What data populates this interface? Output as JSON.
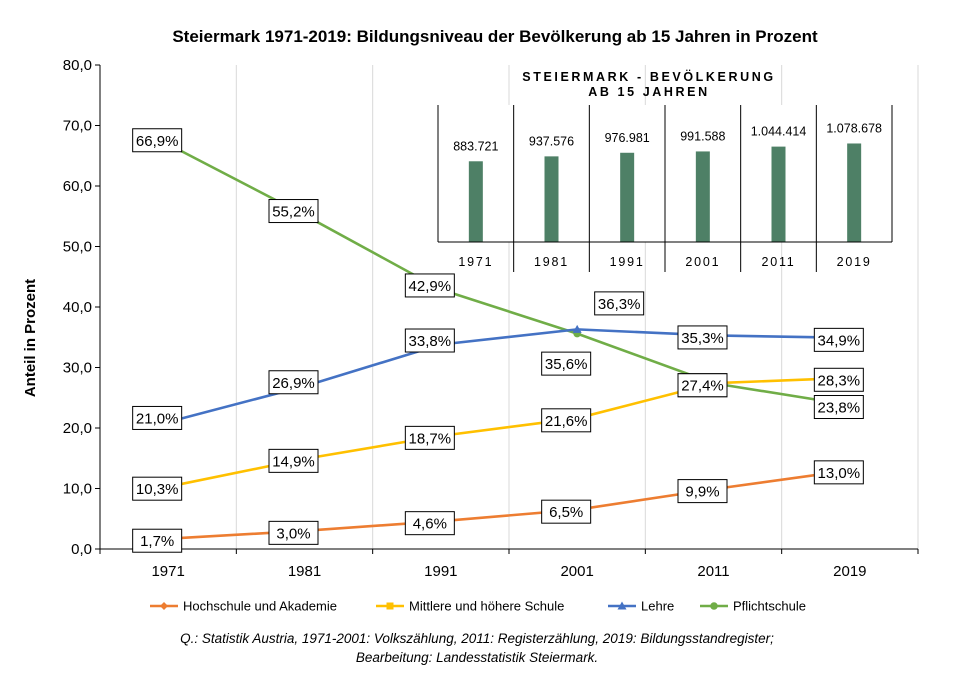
{
  "chart_data": [
    {
      "type": "line",
      "title": "Steiermark 1971-2019: Bildungsniveau der Bevölkerung ab 15 Jahren in Prozent",
      "xlabel": "",
      "ylabel": "Anteil in Prozent",
      "ylim": [
        0,
        80
      ],
      "yticks": [
        "0,0",
        "10,0",
        "20,0",
        "30,0",
        "40,0",
        "50,0",
        "60,0",
        "70,0",
        "80,0"
      ],
      "categories": [
        "1971",
        "1981",
        "1991",
        "2001",
        "2011",
        "2019"
      ],
      "grid": "vertical",
      "legend_position": "bottom",
      "series": [
        {
          "name": "Hochschule und Akademie",
          "color": "#ED7D31",
          "marker": "diamond",
          "values": [
            1.7,
            3.0,
            4.6,
            6.5,
            9.9,
            13.0
          ],
          "labels": [
            "1,7%",
            "3,0%",
            "4,6%",
            "6,5%",
            "9,9%",
            "13,0%"
          ]
        },
        {
          "name": "Mittlere und höhere Schule",
          "color": "#FFC000",
          "marker": "square",
          "values": [
            10.3,
            14.9,
            18.7,
            21.6,
            27.4,
            28.3
          ],
          "labels": [
            "10,3%",
            "14,9%",
            "18,7%",
            "21,6%",
            "27,4%",
            "28,3%"
          ]
        },
        {
          "name": "Lehre",
          "color": "#4472C4",
          "marker": "triangle",
          "values": [
            21.0,
            26.9,
            33.8,
            36.3,
            35.3,
            34.9
          ],
          "labels": [
            "21,0%",
            "26,9%",
            "33,8%",
            "36,3%",
            "35,3%",
            "34,9%"
          ]
        },
        {
          "name": "Pflichtschule",
          "color": "#70AD47",
          "marker": "circle",
          "values": [
            66.9,
            55.2,
            42.9,
            35.6,
            27.4,
            23.8
          ],
          "labels": [
            "66,9%",
            "55,2%",
            "42,9%",
            "35,6%",
            "27,4%",
            "23,8%"
          ]
        }
      ]
    },
    {
      "type": "bar",
      "title": "STEIERMARK - BEVÖLKERUNG AB 15 JAHREN",
      "title_lines": [
        "STEIERMARK - BEVÖLKERUNG",
        "AB 15 JAHREN"
      ],
      "categories": [
        "1971",
        "1981",
        "1991",
        "2001",
        "2011",
        "2019"
      ],
      "values": [
        883721,
        937576,
        976981,
        991588,
        1044414,
        1078678
      ],
      "labels": [
        "883.721",
        "937.576",
        "976.981",
        "991.588",
        "1.044.414",
        "1.078.678"
      ],
      "color": "#4E8066"
    }
  ],
  "source": {
    "line1": "Q.: Statistik Austria, 1971-2001: Volkszählung, 2011: Registerzählung, 2019: Bildungsstandregister;",
    "line2": "Bearbeitung: Landesstatistik Steiermark."
  }
}
